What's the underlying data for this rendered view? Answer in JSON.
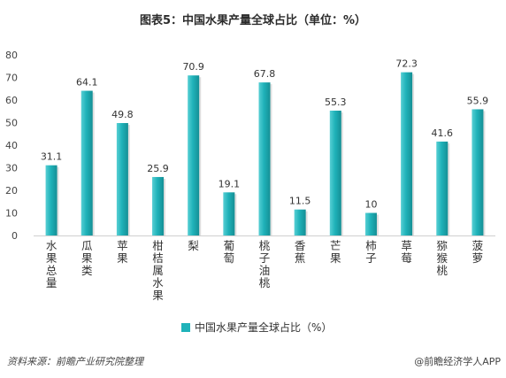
{
  "chart_data": {
    "type": "bar",
    "title": "图表5：中国水果产量全球占比（单位：%）",
    "categories": [
      "水果总量",
      "瓜果类",
      "苹果",
      "柑桔属水果",
      "梨",
      "葡萄",
      "桃子油桃",
      "香蕉",
      "芒果",
      "柿子",
      "草莓",
      "猕猴桃",
      "菠萝"
    ],
    "series": [
      {
        "name": "中国水果产量全球占比（%）",
        "values": [
          31.1,
          64.1,
          49.8,
          25.9,
          70.9,
          19.1,
          67.8,
          11.5,
          55.3,
          10,
          72.3,
          41.6,
          55.9
        ]
      }
    ],
    "yticks": [
      0,
      10,
      20,
      30,
      40,
      50,
      60,
      70,
      80
    ],
    "ylim": [
      0,
      80
    ],
    "grid": false,
    "legend": "bottom-center",
    "colors": {
      "bar": "#1fb2b9",
      "bar_dark": "#158f95",
      "bar_light": "#57cfd4"
    }
  },
  "footer": {
    "source": "资料来源：前瞻产业研究院整理",
    "brand": "@前瞻经济学人APP"
  }
}
